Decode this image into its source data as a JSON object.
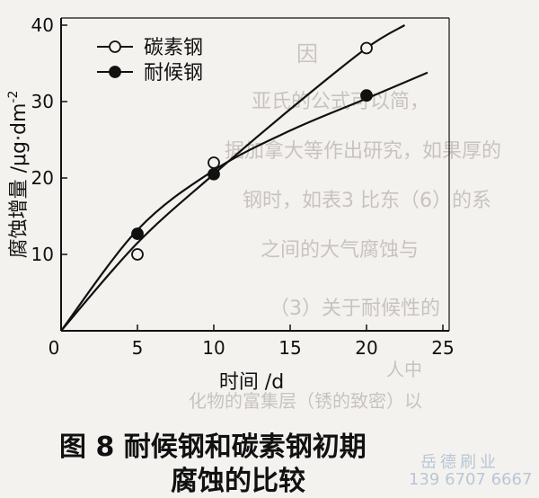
{
  "chart_data": {
    "type": "line",
    "x": [
      0,
      5,
      10,
      20
    ],
    "series": [
      {
        "name": "碳素钢",
        "marker": "open-circle",
        "values": [
          0,
          10,
          22,
          37
        ],
        "fit": [
          [
            0,
            0
          ],
          [
            5,
            11.5
          ],
          [
            10,
            20.5
          ],
          [
            15,
            29
          ],
          [
            20,
            37
          ],
          [
            22.5,
            40
          ]
        ]
      },
      {
        "name": "耐候钢",
        "marker": "filled-circle",
        "values": [
          0,
          12.7,
          20.5,
          30.8
        ],
        "fit": [
          [
            0,
            0
          ],
          [
            5,
            13.2
          ],
          [
            10,
            21
          ],
          [
            15,
            26.2
          ],
          [
            20,
            30.4
          ],
          [
            24,
            33.8
          ]
        ]
      }
    ],
    "xlabel": "时间 /d",
    "ylabel": "腐蚀增量 /μg·dm",
    "ylabel_sup": "-2",
    "xticks": [
      "0",
      "5",
      "10",
      "15",
      "20",
      "25"
    ],
    "yticks": [
      "10",
      "20",
      "30",
      "40"
    ],
    "xlim": [
      0,
      25
    ],
    "ylim": [
      0,
      40
    ],
    "grid": false,
    "legend_position": "top-left"
  },
  "caption": {
    "line1": "图 8   耐候钢和碳素钢初期",
    "line2": "腐蚀的比较"
  },
  "watermark": {
    "line1": "岳德刷业",
    "line2": "139 6707 6667"
  },
  "colors": {
    "ink": "#111111",
    "paper": "#f4f2ef",
    "watermark": "#b9c6d6"
  }
}
